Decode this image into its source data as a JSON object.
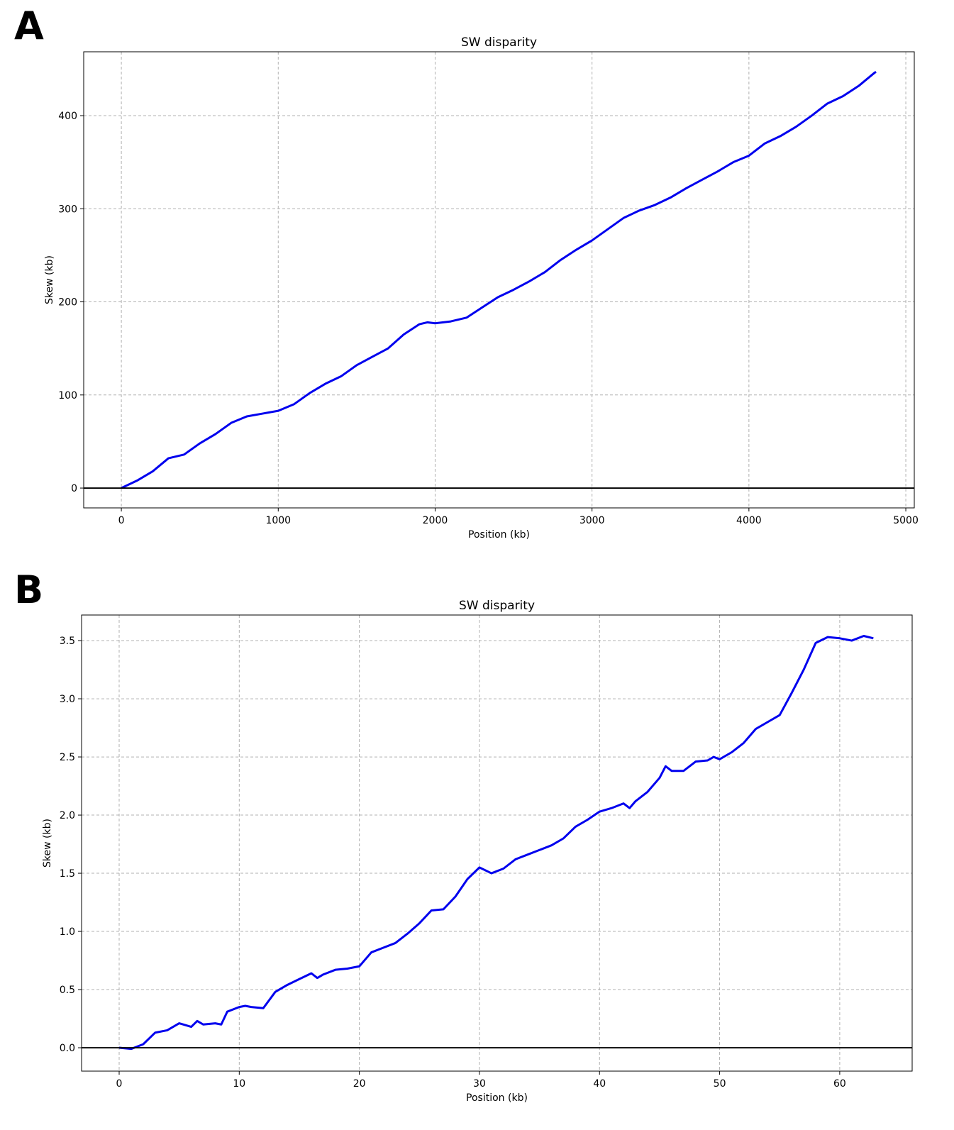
{
  "chart_data": [
    {
      "type": "line",
      "label": "A",
      "title": "SW disparity",
      "xlabel": "Position (kb)",
      "ylabel": "Skew (kb)",
      "x": [
        0,
        100,
        200,
        300,
        400,
        500,
        600,
        700,
        800,
        900,
        1000,
        1100,
        1200,
        1300,
        1400,
        1500,
        1600,
        1700,
        1800,
        1900,
        1950,
        2000,
        2100,
        2200,
        2300,
        2400,
        2500,
        2600,
        2700,
        2800,
        2900,
        3000,
        3100,
        3200,
        3300,
        3400,
        3500,
        3600,
        3700,
        3800,
        3900,
        4000,
        4100,
        4200,
        4300,
        4400,
        4500,
        4600,
        4700,
        4800,
        4810
      ],
      "series": [
        {
          "color": "#0000ee",
          "values": [
            0,
            8,
            18,
            32,
            36,
            48,
            58,
            70,
            77,
            80,
            83,
            90,
            102,
            112,
            120,
            132,
            141,
            150,
            165,
            176,
            178,
            177,
            179,
            183,
            194,
            205,
            213,
            222,
            232,
            245,
            256,
            266,
            278,
            290,
            298,
            304,
            312,
            322,
            331,
            340,
            350,
            357,
            370,
            378,
            388,
            400,
            413,
            421,
            432,
            446,
            447
          ]
        }
      ],
      "hline": 0,
      "xlim": [
        -240,
        5054
      ],
      "ylim": [
        -21.3,
        468.6
      ],
      "xticks": [
        0,
        1000,
        2000,
        3000,
        4000,
        5000
      ],
      "yticks": [
        0,
        100,
        200,
        300,
        400
      ],
      "grid": true
    },
    {
      "type": "line",
      "label": "B",
      "title": "SW disparity",
      "xlabel": "Position (kb)",
      "ylabel": "Skew (kb)",
      "x": [
        0,
        1,
        2,
        3,
        4,
        5,
        6,
        6.5,
        7,
        8,
        8.5,
        9,
        10,
        10.5,
        11,
        12,
        13,
        14,
        15,
        16,
        16.5,
        17,
        18,
        19,
        20,
        21,
        22,
        23,
        24,
        25,
        26,
        27,
        28,
        29,
        30,
        31,
        32,
        33,
        34,
        35,
        36,
        37,
        38,
        39,
        40,
        41,
        42,
        42.5,
        43,
        44,
        45,
        45.5,
        46,
        47,
        48,
        49,
        49.5,
        50,
        51,
        52,
        53,
        54,
        55,
        56,
        57,
        58,
        59,
        60,
        61,
        62,
        62.8
      ],
      "series": [
        {
          "color": "#0000ee",
          "values": [
            0,
            -0.01,
            0.03,
            0.13,
            0.15,
            0.21,
            0.18,
            0.23,
            0.2,
            0.21,
            0.2,
            0.31,
            0.35,
            0.36,
            0.35,
            0.34,
            0.48,
            0.54,
            0.59,
            0.64,
            0.6,
            0.63,
            0.67,
            0.68,
            0.7,
            0.82,
            0.86,
            0.9,
            0.98,
            1.07,
            1.18,
            1.19,
            1.3,
            1.45,
            1.55,
            1.5,
            1.54,
            1.62,
            1.66,
            1.7,
            1.74,
            1.8,
            1.9,
            1.96,
            2.03,
            2.06,
            2.1,
            2.06,
            2.12,
            2.2,
            2.32,
            2.42,
            2.38,
            2.38,
            2.46,
            2.47,
            2.5,
            2.48,
            2.54,
            2.62,
            2.74,
            2.8,
            2.86,
            3.05,
            3.25,
            3.48,
            3.53,
            3.52,
            3.5,
            3.54,
            3.52
          ]
        }
      ],
      "hline": 0,
      "xlim": [
        -3.13,
        66.03
      ],
      "ylim": [
        -0.201,
        3.72
      ],
      "xticks": [
        0,
        10,
        20,
        30,
        40,
        50,
        60
      ],
      "yticks": [
        {
          "value": 0,
          "label": "0.0"
        },
        0.5,
        {
          "value": 1,
          "label": "1.0"
        },
        1.5,
        {
          "value": 2,
          "label": "2.0"
        },
        2.5,
        {
          "value": 3,
          "label": "3.0"
        },
        3.5
      ],
      "grid": true
    }
  ]
}
